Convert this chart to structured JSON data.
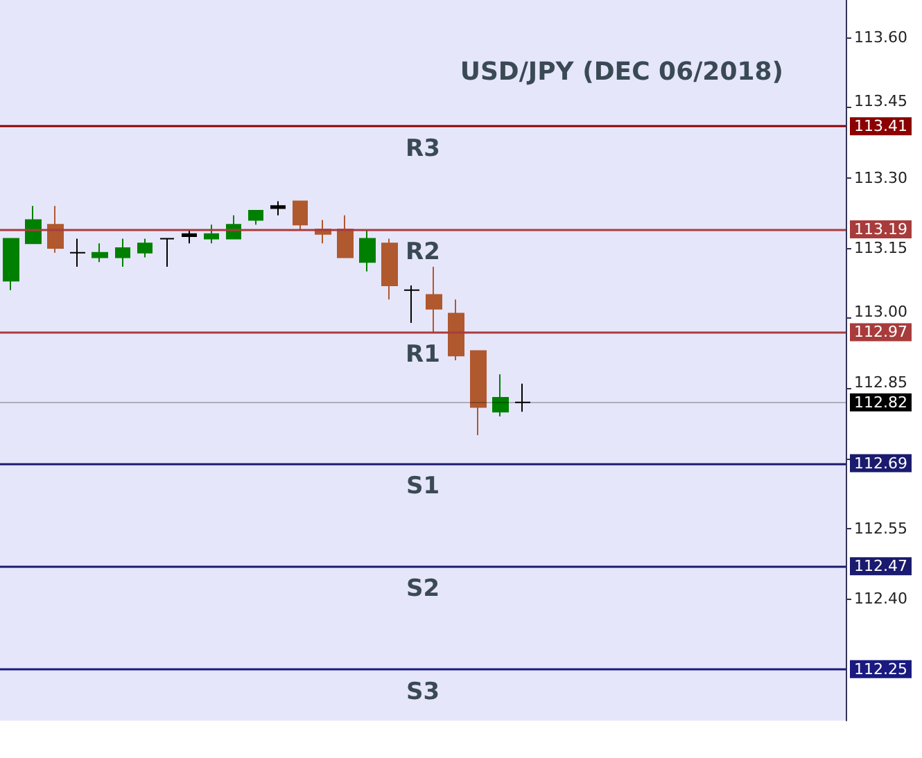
{
  "chart_data": {
    "type": "candlestick",
    "title": "USD/JPY (DEC 06/2018)",
    "categories": [
      null,
      null,
      null,
      null,
      null,
      null,
      null,
      null,
      null,
      null,
      null,
      null,
      null,
      null,
      null,
      null,
      null,
      null,
      null,
      null,
      null,
      null,
      null,
      null,
      null,
      null,
      null,
      null,
      null,
      null,
      null,
      null,
      null,
      null,
      null,
      null,
      null,
      null
    ],
    "ohlc": [
      [
        113.08,
        113.17,
        113.06,
        113.17
      ],
      [
        113.16,
        113.24,
        113.16,
        113.21
      ],
      [
        113.2,
        113.24,
        113.14,
        113.15
      ],
      [
        113.14,
        113.17,
        113.11,
        113.14
      ],
      [
        113.13,
        113.16,
        113.12,
        113.14
      ],
      [
        113.13,
        113.17,
        113.11,
        113.15
      ],
      [
        113.14,
        113.17,
        113.13,
        113.16
      ],
      [
        113.17,
        113.17,
        113.11,
        113.17
      ],
      [
        113.175,
        113.19,
        113.16,
        113.18
      ],
      [
        113.17,
        113.2,
        113.16,
        113.18
      ],
      [
        113.17,
        113.22,
        113.17,
        113.2
      ],
      [
        113.21,
        113.23,
        113.2,
        113.23
      ],
      [
        113.235,
        113.25,
        113.22,
        113.24
      ],
      [
        113.25,
        113.25,
        113.19,
        113.2
      ],
      [
        113.19,
        113.21,
        113.16,
        113.18
      ],
      [
        113.19,
        113.22,
        113.13,
        113.13
      ],
      [
        113.12,
        113.19,
        113.1,
        113.17
      ],
      [
        113.16,
        113.17,
        113.04,
        113.07
      ],
      [
        113.06,
        113.07,
        112.99,
        113.06
      ],
      [
        113.05,
        113.11,
        112.97,
        113.02
      ],
      [
        113.01,
        113.04,
        112.91,
        112.92
      ],
      [
        112.93,
        112.93,
        112.75,
        112.81
      ],
      [
        112.8,
        112.88,
        112.79,
        112.83
      ],
      [
        112.82,
        112.86,
        112.8,
        112.82
      ],
      null,
      null,
      null,
      null,
      null,
      null,
      null,
      null,
      null,
      null,
      null,
      null,
      null,
      null
    ],
    "colors": [
      "#008000",
      "#008000",
      "#b0582e",
      "#000000",
      "#008000",
      "#008000",
      "#008000",
      "#000000",
      "#000000",
      "#008000",
      "#008000",
      "#008000",
      "#000000",
      "#b0582e",
      "#b0582e",
      "#b0582e",
      "#008000",
      "#b0582e",
      "#000000",
      "#b0582e",
      "#b0582e",
      "#b0582e",
      "#008000",
      "#000000",
      null,
      null,
      null,
      null,
      null,
      null,
      null,
      null,
      null,
      null,
      null,
      null,
      null,
      null
    ],
    "ylim": [
      112.14,
      113.68
    ],
    "yticks": [
      {
        "value": 112.4,
        "label": "112.40"
      },
      112.55,
      {
        "value": 112.7,
        "label": null
      },
      112.85,
      {
        "value": 113.0,
        "label": "113.00"
      },
      113.15,
      {
        "value": 113.3,
        "label": "113.30"
      },
      113.45,
      {
        "value": 113.6,
        "label": "113.60"
      }
    ],
    "annotations": [
      "113.41",
      "113.19",
      "112.97",
      "112.82",
      "112.69",
      "112.47",
      "112.25"
    ],
    "ref_lines": [
      {
        "axis": "y",
        "value": 113.41,
        "label": "R3",
        "color": "#8b0000"
      },
      {
        "axis": "y",
        "value": 113.19,
        "label": "R2",
        "color": "#a83c3c"
      },
      {
        "axis": "y",
        "value": 112.97,
        "label": "R1",
        "color": "#a83c3c"
      },
      {
        "axis": "y",
        "value": 112.82,
        "label": null,
        "color": "#000000"
      },
      {
        "axis": "y",
        "value": 112.69,
        "label": "S1",
        "color": "#1a1a6e"
      },
      {
        "axis": "y",
        "value": 112.47,
        "label": "S2",
        "color": "#1a1a6e"
      },
      {
        "axis": "y",
        "value": 112.25,
        "label": "S3",
        "color": "#1a1a80"
      }
    ],
    "grid": false
  }
}
